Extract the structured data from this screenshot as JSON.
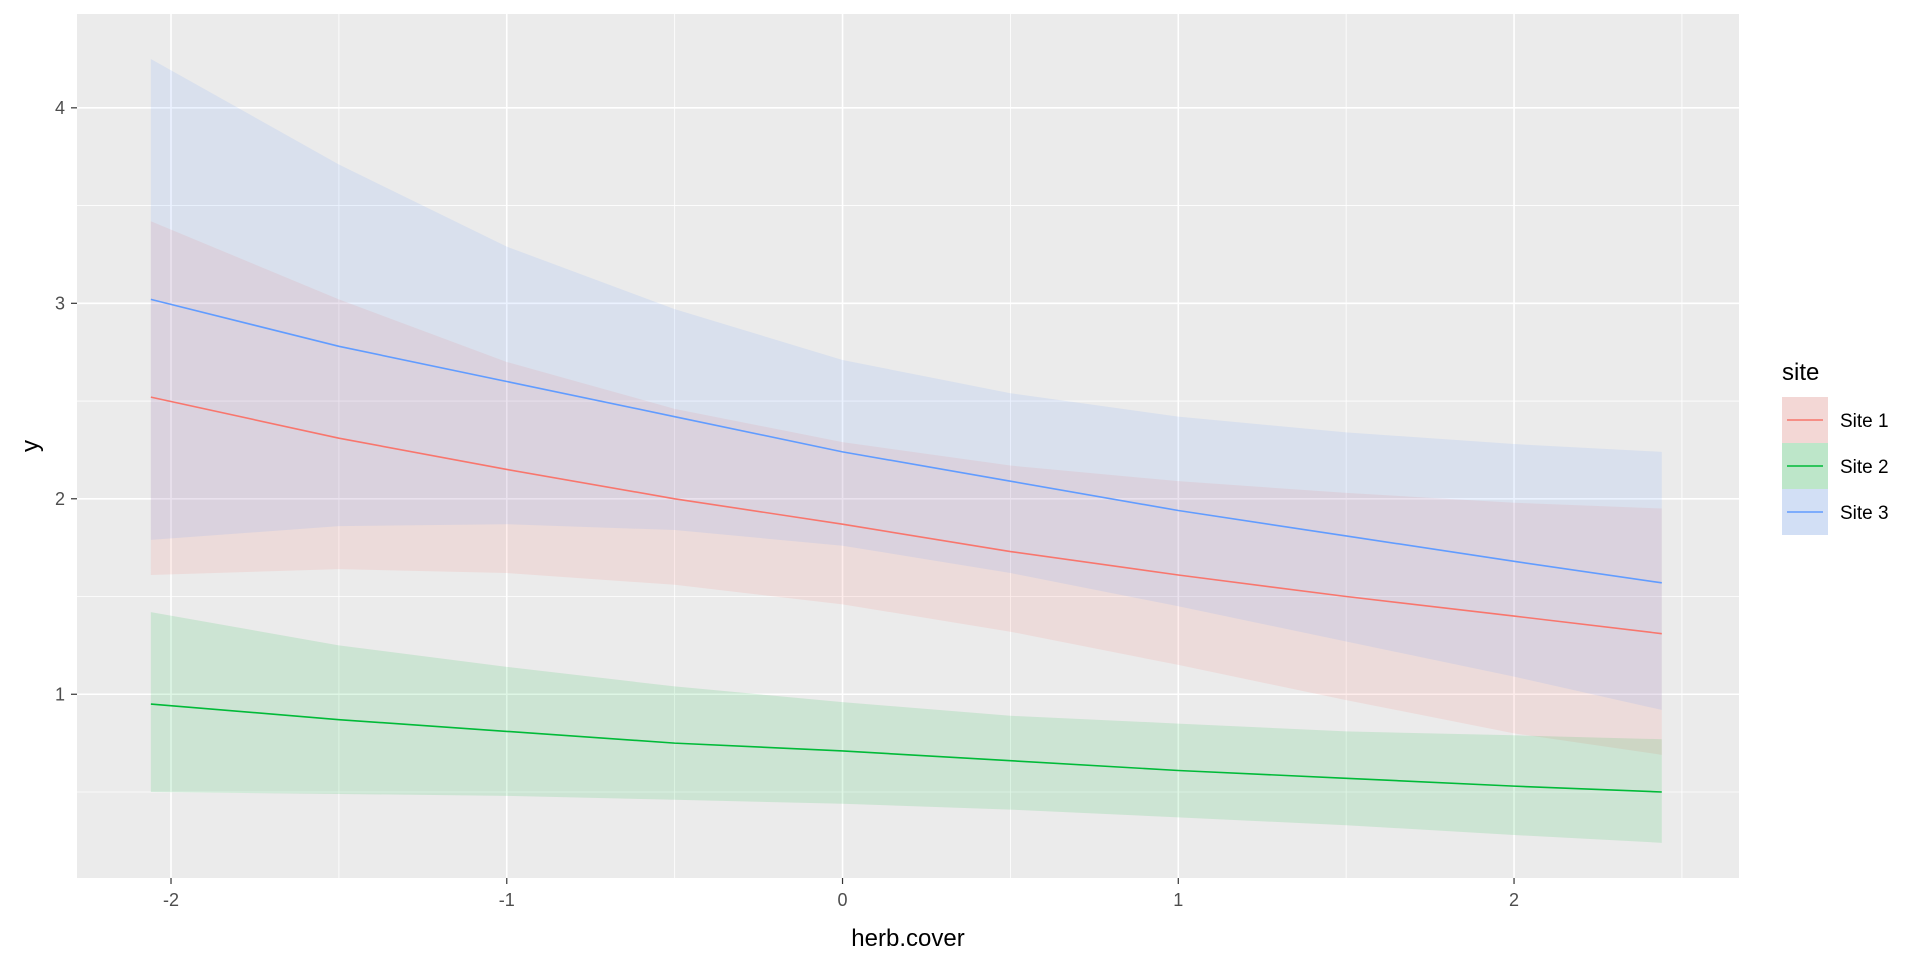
{
  "chart_data": {
    "type": "line",
    "xlabel": "herb.cover",
    "ylabel": "y",
    "xlim": [
      -2.28,
      2.67
    ],
    "ylim": [
      0.06,
      4.48
    ],
    "x_ticks": [
      -2,
      -1,
      0,
      1,
      2
    ],
    "x_tick_labels": [
      "-2",
      "-1",
      "0",
      "1",
      "2"
    ],
    "y_ticks": [
      1,
      2,
      3,
      4
    ],
    "y_tick_labels": [
      "1",
      "2",
      "3",
      "4"
    ],
    "grid": true,
    "legend": {
      "title": "site",
      "position": "right"
    },
    "x": [
      -2.06,
      -1.5,
      -1.0,
      -0.5,
      0.0,
      0.5,
      1.0,
      1.5,
      2.0,
      2.44
    ],
    "series": [
      {
        "name": "Site 1",
        "color": "#F8766D",
        "values": [
          2.52,
          2.31,
          2.15,
          2.0,
          1.87,
          1.73,
          1.61,
          1.5,
          1.4,
          1.31
        ],
        "lower": [
          1.61,
          1.64,
          1.62,
          1.56,
          1.46,
          1.32,
          1.15,
          0.97,
          0.8,
          0.69
        ],
        "upper": [
          3.42,
          3.02,
          2.7,
          2.46,
          2.29,
          2.17,
          2.09,
          2.03,
          1.98,
          1.95
        ]
      },
      {
        "name": "Site 2",
        "color": "#00BA38",
        "values": [
          0.95,
          0.87,
          0.81,
          0.75,
          0.71,
          0.66,
          0.61,
          0.57,
          0.53,
          0.5
        ],
        "lower": [
          0.5,
          0.49,
          0.48,
          0.46,
          0.44,
          0.41,
          0.37,
          0.33,
          0.28,
          0.24
        ],
        "upper": [
          1.42,
          1.25,
          1.14,
          1.04,
          0.96,
          0.89,
          0.85,
          0.81,
          0.79,
          0.77
        ]
      },
      {
        "name": "Site 3",
        "color": "#619CFF",
        "values": [
          3.02,
          2.78,
          2.6,
          2.42,
          2.24,
          2.09,
          1.94,
          1.81,
          1.68,
          1.57
        ],
        "lower": [
          1.79,
          1.86,
          1.87,
          1.84,
          1.76,
          1.62,
          1.45,
          1.27,
          1.09,
          0.92
        ],
        "upper": [
          4.25,
          3.71,
          3.29,
          2.97,
          2.71,
          2.54,
          2.42,
          2.34,
          2.28,
          2.24
        ]
      }
    ]
  }
}
